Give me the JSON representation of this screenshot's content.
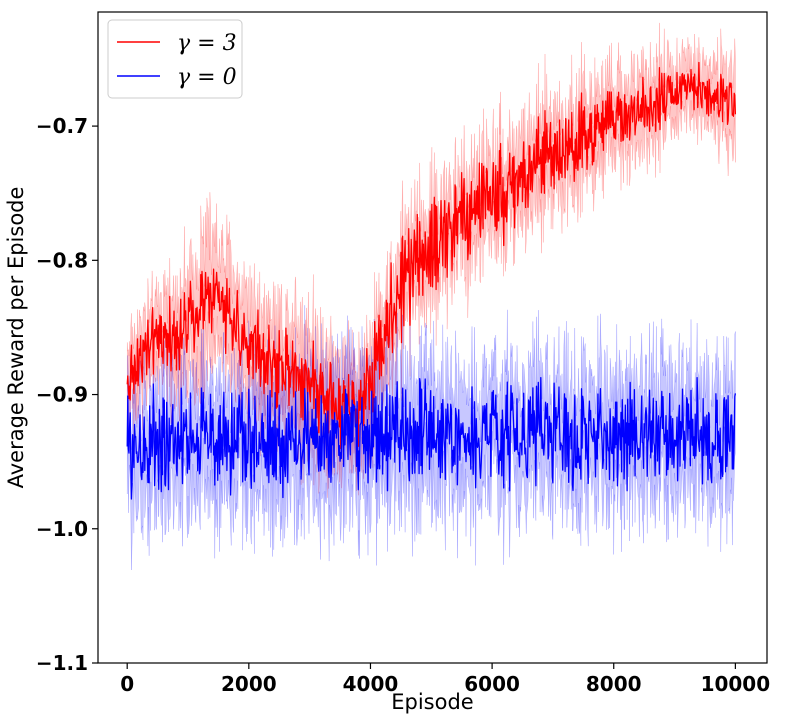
{
  "chart_data": {
    "type": "line",
    "xlabel": "Episode",
    "ylabel": "Average Reward per Episode",
    "xlim": [
      -480,
      10520
    ],
    "ylim": [
      -1.1,
      -0.615
    ],
    "x_ticks": [
      0,
      2000,
      4000,
      6000,
      8000,
      10000
    ],
    "x_tick_labels": [
      "0",
      "2000",
      "4000",
      "6000",
      "8000",
      "10000"
    ],
    "y_ticks": [
      -1.1,
      -1.0,
      -0.9,
      -0.8,
      -0.7
    ],
    "y_tick_labels": [
      "−1.1",
      "−1.0",
      "−0.9",
      "−0.8",
      "−0.7"
    ],
    "grid": false,
    "legend_position": "top-left",
    "series": [
      {
        "name": "γ = 3",
        "legend_text": "γ = 3",
        "color": "#ff0000",
        "band_color": "#ff0000",
        "x": [
          0,
          250,
          500,
          750,
          1000,
          1250,
          1500,
          1750,
          2000,
          2250,
          2500,
          2750,
          3000,
          3250,
          3500,
          3750,
          4000,
          4250,
          4500,
          4750,
          5000,
          5250,
          5500,
          5750,
          6000,
          6250,
          6500,
          6750,
          7000,
          7250,
          7500,
          7750,
          8000,
          8250,
          8500,
          8750,
          9000,
          9250,
          9500,
          9750,
          10000
        ],
        "y": [
          -0.89,
          -0.87,
          -0.86,
          -0.855,
          -0.85,
          -0.83,
          -0.83,
          -0.85,
          -0.86,
          -0.87,
          -0.88,
          -0.88,
          -0.89,
          -0.9,
          -0.91,
          -0.91,
          -0.89,
          -0.85,
          -0.82,
          -0.8,
          -0.79,
          -0.78,
          -0.77,
          -0.755,
          -0.75,
          -0.745,
          -0.74,
          -0.73,
          -0.72,
          -0.715,
          -0.71,
          -0.7,
          -0.695,
          -0.69,
          -0.69,
          -0.68,
          -0.675,
          -0.67,
          -0.675,
          -0.68,
          -0.685
        ],
        "band": [
          0.025,
          0.025,
          0.025,
          0.03,
          0.035,
          0.05,
          0.04,
          0.04,
          0.035,
          0.035,
          0.035,
          0.04,
          0.04,
          0.04,
          0.035,
          0.03,
          0.03,
          0.03,
          0.03,
          0.03,
          0.03,
          0.03,
          0.03,
          0.03,
          0.03,
          0.03,
          0.03,
          0.03,
          0.03,
          0.03,
          0.03,
          0.025,
          0.025,
          0.025,
          0.025,
          0.025,
          0.02,
          0.02,
          0.02,
          0.025,
          0.03
        ],
        "noise": [
          0.02,
          0.02,
          0.02,
          0.02,
          0.02,
          0.025,
          0.025,
          0.025,
          0.025,
          0.025,
          0.025,
          0.025,
          0.025,
          0.025,
          0.025,
          0.025,
          0.025,
          0.03,
          0.03,
          0.03,
          0.03,
          0.03,
          0.03,
          0.03,
          0.03,
          0.03,
          0.03,
          0.03,
          0.025,
          0.025,
          0.025,
          0.02,
          0.02,
          0.02,
          0.02,
          0.02,
          0.015,
          0.015,
          0.015,
          0.015,
          0.015
        ]
      },
      {
        "name": "γ = 0",
        "legend_text": "γ = 0",
        "color": "#0000ff",
        "band_color": "#0000ff",
        "x": [
          0,
          1000,
          2000,
          3000,
          4000,
          5000,
          6000,
          7000,
          8000,
          9000,
          10000
        ],
        "y": [
          -0.935,
          -0.935,
          -0.935,
          -0.935,
          -0.932,
          -0.93,
          -0.93,
          -0.93,
          -0.93,
          -0.93,
          -0.93
        ],
        "band": [
          0.035,
          0.04,
          0.04,
          0.045,
          0.045,
          0.04,
          0.04,
          0.04,
          0.04,
          0.04,
          0.04
        ],
        "noise": [
          0.03,
          0.03,
          0.03,
          0.03,
          0.03,
          0.03,
          0.03,
          0.03,
          0.03,
          0.03,
          0.03
        ]
      }
    ]
  }
}
